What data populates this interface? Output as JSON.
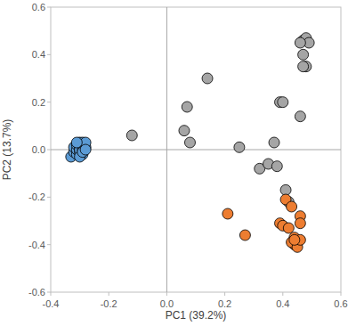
{
  "chart_data": {
    "type": "scatter",
    "x_label": "PC1 (39.2%)",
    "y_label": "PC2 (13.7%)",
    "xlim": [
      -0.4,
      0.6
    ],
    "ylim": [
      -0.6,
      0.6
    ],
    "xticks": [
      -0.4,
      -0.2,
      {
        "value": 0,
        "label": "0.0"
      },
      0.2,
      0.4,
      0.6
    ],
    "yticks": [
      -0.6,
      -0.4,
      -0.2,
      {
        "value": 0,
        "label": "0.0"
      },
      0.2,
      0.4,
      0.6
    ],
    "grid": false,
    "marker": "circle",
    "series": [
      {
        "color": "#5b9bd5",
        "x": [
          -0.33,
          -0.32,
          -0.32,
          -0.31,
          -0.31,
          -0.31,
          -0.3,
          -0.3,
          -0.3,
          -0.3,
          -0.29,
          -0.29,
          -0.29,
          -0.29,
          -0.28,
          -0.28,
          -0.3,
          -0.31,
          -0.29,
          -0.28
        ],
        "values": [
          -0.03,
          -0.01,
          0.01,
          -0.02,
          0.0,
          0.02,
          -0.01,
          0.01,
          0.03,
          0.0,
          -0.02,
          0.0,
          0.02,
          0.03,
          0.01,
          0.03,
          -0.03,
          0.03,
          -0.01,
          0.0
        ]
      },
      {
        "color": "#a5a5a5",
        "x": [
          -0.12,
          0.06,
          0.07,
          0.08,
          0.14,
          0.25,
          0.32,
          0.35,
          0.37,
          0.38,
          0.39,
          0.4,
          0.41,
          0.42,
          0.46,
          0.47,
          0.47,
          0.48,
          0.48,
          0.47,
          0.49,
          0.46
        ],
        "values": [
          0.06,
          0.08,
          0.18,
          0.03,
          0.3,
          0.01,
          -0.08,
          -0.06,
          0.03,
          -0.07,
          0.2,
          0.2,
          -0.17,
          -0.22,
          0.14,
          0.46,
          0.4,
          0.47,
          0.35,
          0.35,
          0.45,
          0.45
        ]
      },
      {
        "color": "#ed7d31",
        "x": [
          0.21,
          0.27,
          0.39,
          0.4,
          0.42,
          0.41,
          0.43,
          0.44,
          0.44,
          0.45,
          0.46,
          0.46,
          0.43,
          0.45,
          0.46,
          0.44
        ],
        "values": [
          -0.27,
          -0.36,
          -0.31,
          -0.32,
          -0.33,
          -0.21,
          -0.24,
          -0.37,
          -0.4,
          -0.39,
          -0.28,
          -0.31,
          -0.39,
          -0.41,
          -0.38,
          -0.38
        ]
      }
    ]
  }
}
